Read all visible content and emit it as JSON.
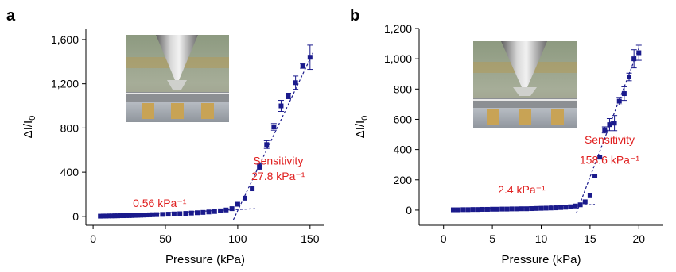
{
  "colors": {
    "marker": "#1a1a8c",
    "fit_line": "#1a1a8c",
    "annotation": "#e02020",
    "axis": "#000000"
  },
  "chart_data": [
    {
      "panel": "a",
      "type": "scatter",
      "xlabel": "Pressure (kPa)",
      "ylabel_main": "ΔI/I",
      "ylabel_sub": "0",
      "xlim": [
        -5,
        160
      ],
      "ylim": [
        -80,
        1700
      ],
      "xticks": [
        0,
        50,
        100,
        150
      ],
      "xtick_labels": [
        "0",
        "50",
        "100",
        "150"
      ],
      "yticks": [
        0,
        400,
        800,
        1200,
        1600
      ],
      "ytick_labels": [
        "0",
        "400",
        "800",
        "1,200",
        "1,600"
      ],
      "inset": "photo",
      "annotations": [
        {
          "text": "Sensitivity",
          "x": 128,
          "y": 470
        },
        {
          "text": "27.8 kPa⁻¹",
          "x": 128,
          "y": 330
        },
        {
          "text": "0.56 kPa⁻¹",
          "x": 46,
          "y": 85
        }
      ],
      "fit_lines": [
        {
          "x1": 5,
          "y1": 3,
          "x2": 112,
          "y2": 70
        },
        {
          "x1": 97,
          "y1": -30,
          "x2": 152,
          "y2": 1480
        }
      ],
      "points": [
        {
          "x": 5,
          "y": 2
        },
        {
          "x": 7,
          "y": 3
        },
        {
          "x": 9,
          "y": 3
        },
        {
          "x": 11,
          "y": 4
        },
        {
          "x": 13,
          "y": 4
        },
        {
          "x": 15,
          "y": 5
        },
        {
          "x": 17,
          "y": 5
        },
        {
          "x": 19,
          "y": 6
        },
        {
          "x": 21,
          "y": 6
        },
        {
          "x": 23,
          "y": 7
        },
        {
          "x": 25,
          "y": 7
        },
        {
          "x": 27,
          "y": 8
        },
        {
          "x": 29,
          "y": 9
        },
        {
          "x": 31,
          "y": 10
        },
        {
          "x": 33,
          "y": 11
        },
        {
          "x": 35,
          "y": 12
        },
        {
          "x": 37,
          "y": 13
        },
        {
          "x": 39,
          "y": 14
        },
        {
          "x": 41,
          "y": 15
        },
        {
          "x": 44,
          "y": 16
        },
        {
          "x": 48,
          "y": 18
        },
        {
          "x": 52,
          "y": 20
        },
        {
          "x": 56,
          "y": 22
        },
        {
          "x": 60,
          "y": 24
        },
        {
          "x": 64,
          "y": 27
        },
        {
          "x": 68,
          "y": 30
        },
        {
          "x": 72,
          "y": 33
        },
        {
          "x": 76,
          "y": 36
        },
        {
          "x": 80,
          "y": 40
        },
        {
          "x": 84,
          "y": 44
        },
        {
          "x": 88,
          "y": 50
        },
        {
          "x": 92,
          "y": 58
        },
        {
          "x": 96,
          "y": 70
        },
        {
          "x": 100,
          "y": 110
        },
        {
          "x": 105,
          "y": 165
        },
        {
          "x": 110,
          "y": 250
        },
        {
          "x": 115,
          "y": 450,
          "err": 25
        },
        {
          "x": 120,
          "y": 650,
          "err": 35
        },
        {
          "x": 125,
          "y": 810,
          "err": 30
        },
        {
          "x": 130,
          "y": 1000,
          "err": 50
        },
        {
          "x": 135,
          "y": 1090,
          "err": 25
        },
        {
          "x": 140,
          "y": 1210,
          "err": 60
        },
        {
          "x": 145,
          "y": 1360,
          "err": 20
        },
        {
          "x": 150,
          "y": 1440,
          "err": 110
        }
      ]
    },
    {
      "panel": "b",
      "type": "scatter",
      "xlabel": "Pressure (kPa)",
      "ylabel_main": "ΔI/I",
      "ylabel_sub": "0",
      "xlim": [
        -2.5,
        22.5
      ],
      "ylim": [
        -100,
        1200
      ],
      "xticks": [
        0,
        5,
        10,
        15,
        20
      ],
      "xtick_labels": [
        "0",
        "5",
        "10",
        "15",
        "20"
      ],
      "yticks": [
        0,
        200,
        400,
        600,
        800,
        1000,
        1200
      ],
      "ytick_labels": [
        "0",
        "200",
        "400",
        "600",
        "800",
        "1,000",
        "1,200"
      ],
      "inset": "photo",
      "annotations": [
        {
          "text": "Sensitivity",
          "x": 17,
          "y": 440
        },
        {
          "text": "158.6 kPa⁻¹",
          "x": 17,
          "y": 305
        },
        {
          "text": "2.4 kPa⁻¹",
          "x": 8,
          "y": 110
        }
      ],
      "fit_lines": [
        {
          "x1": 1,
          "y1": 2,
          "x2": 15.5,
          "y2": 37
        },
        {
          "x1": 13.6,
          "y1": -20,
          "x2": 20,
          "y2": 1070
        }
      ],
      "points": [
        {
          "x": 1,
          "y": 2
        },
        {
          "x": 1.5,
          "y": 2
        },
        {
          "x": 2,
          "y": 3
        },
        {
          "x": 2.5,
          "y": 3
        },
        {
          "x": 3,
          "y": 4
        },
        {
          "x": 3.5,
          "y": 4
        },
        {
          "x": 4,
          "y": 5
        },
        {
          "x": 4.5,
          "y": 5
        },
        {
          "x": 5,
          "y": 6
        },
        {
          "x": 5.5,
          "y": 6
        },
        {
          "x": 6,
          "y": 7
        },
        {
          "x": 6.5,
          "y": 7
        },
        {
          "x": 7,
          "y": 8
        },
        {
          "x": 7.5,
          "y": 8
        },
        {
          "x": 8,
          "y": 9
        },
        {
          "x": 8.5,
          "y": 9
        },
        {
          "x": 9,
          "y": 10
        },
        {
          "x": 9.5,
          "y": 11
        },
        {
          "x": 10,
          "y": 12
        },
        {
          "x": 10.5,
          "y": 13
        },
        {
          "x": 11,
          "y": 14
        },
        {
          "x": 11.5,
          "y": 15
        },
        {
          "x": 12,
          "y": 17
        },
        {
          "x": 12.5,
          "y": 19
        },
        {
          "x": 13,
          "y": 22
        },
        {
          "x": 13.5,
          "y": 27
        },
        {
          "x": 14,
          "y": 35
        },
        {
          "x": 14.5,
          "y": 55
        },
        {
          "x": 15,
          "y": 95
        },
        {
          "x": 15.5,
          "y": 225
        },
        {
          "x": 16,
          "y": 350
        },
        {
          "x": 16.5,
          "y": 530,
          "err": 20
        },
        {
          "x": 17,
          "y": 565,
          "err": 40
        },
        {
          "x": 17.5,
          "y": 575,
          "err": 50
        },
        {
          "x": 18,
          "y": 720,
          "err": 25
        },
        {
          "x": 18.5,
          "y": 770,
          "err": 45
        },
        {
          "x": 19,
          "y": 880,
          "err": 25
        },
        {
          "x": 19.5,
          "y": 1000,
          "err": 60
        },
        {
          "x": 20,
          "y": 1040,
          "err": 50
        }
      ]
    }
  ]
}
